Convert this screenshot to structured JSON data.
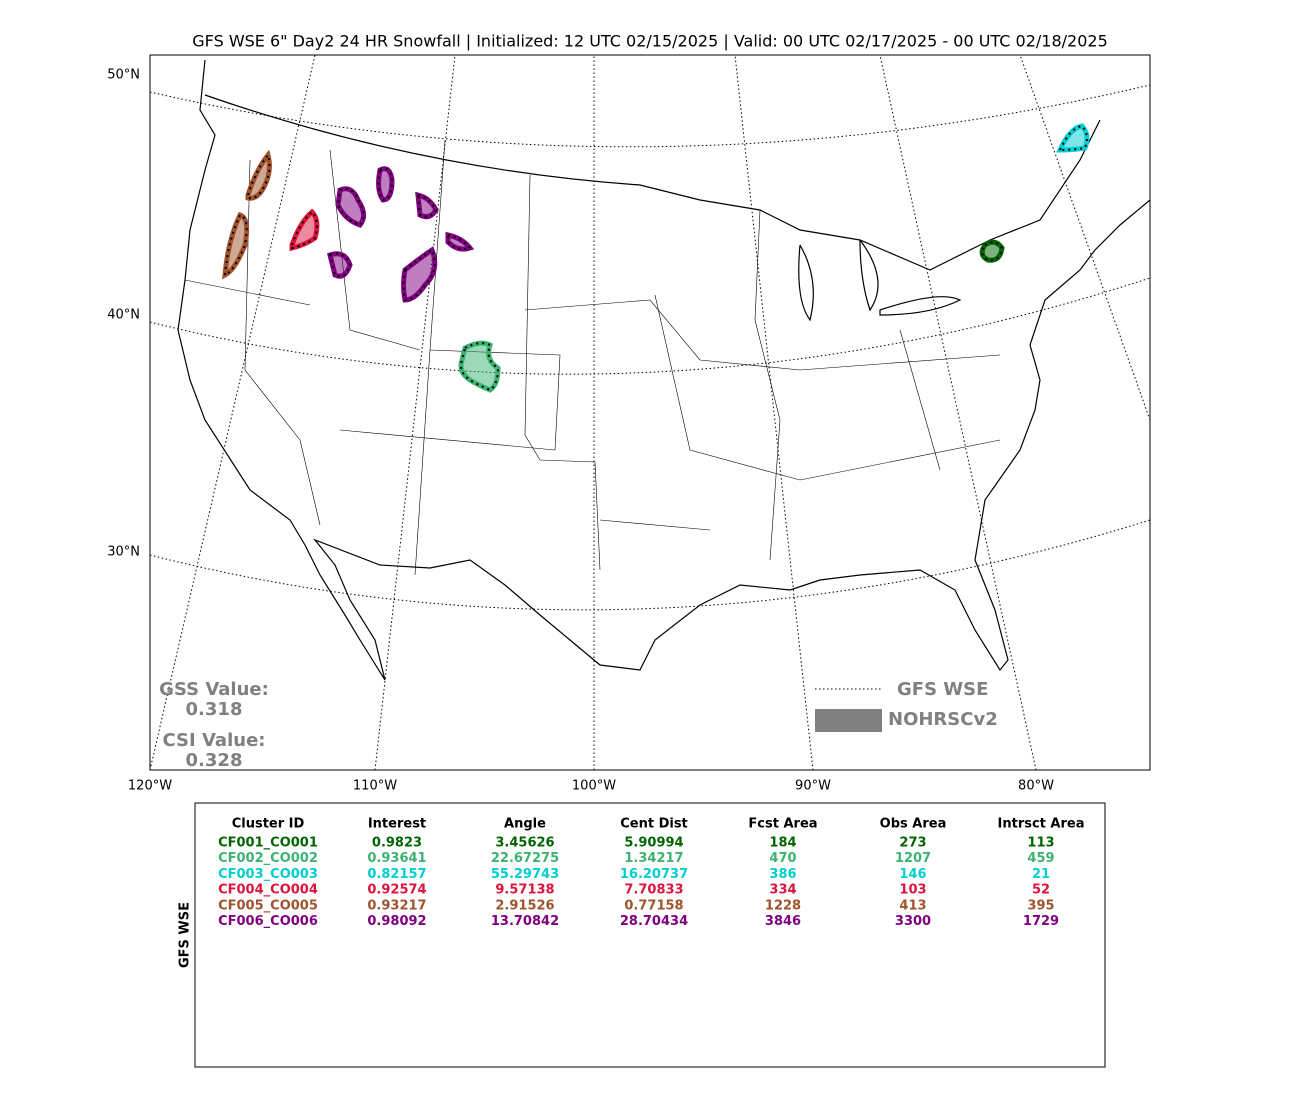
{
  "header": {
    "title": "GFS WSE 6\" Day2 24 HR Snowfall | Initialized: 12 UTC 02/15/2025 | Valid: 00 UTC 02/17/2025 - 00 UTC 02/18/2025"
  },
  "map": {
    "lat_labels": [
      "50°N",
      "40°N",
      "30°N"
    ],
    "lon_labels": [
      "120°W",
      "110°W",
      "100°W",
      "90°W",
      "80°W"
    ],
    "legend": [
      {
        "label": "GFS WSE",
        "color": "#808080"
      },
      {
        "label": "NOHRSCv2",
        "color": "#808080"
      }
    ],
    "stats": [
      {
        "label": "GSS Value:",
        "value": 0.318
      },
      {
        "label": "CSI Value:",
        "value": 0.328
      }
    ]
  },
  "table": {
    "side_label": "GFS WSE",
    "columns": [
      "Cluster ID",
      "Interest",
      "Angle",
      "Cent Dist",
      "Fcst Area",
      "Obs Area",
      "Intrsct Area"
    ],
    "rows": [
      {
        "color": "#006400",
        "cells": [
          "CF001_CO001",
          0.9823,
          3.45626,
          5.90994,
          184,
          273,
          113
        ]
      },
      {
        "color": "#3cb371",
        "cells": [
          "CF002_CO002",
          0.93641,
          22.67275,
          1.34217,
          470,
          1207,
          459
        ]
      },
      {
        "color": "#00ced1",
        "cells": [
          "CF003_CO003",
          0.82157,
          55.29743,
          16.20737,
          386,
          146,
          21
        ]
      },
      {
        "color": "#dc143c",
        "cells": [
          "CF004_CO004",
          0.92574,
          9.57138,
          7.70833,
          334,
          103,
          52
        ]
      },
      {
        "color": "#a0522d",
        "cells": [
          "CF005_CO005",
          0.93217,
          2.91526,
          0.77158,
          1228,
          413,
          395
        ]
      },
      {
        "color": "#800080",
        "cells": [
          "CF006_CO006",
          0.98092,
          13.70842,
          28.70434,
          3846,
          3300,
          1729
        ]
      }
    ]
  }
}
